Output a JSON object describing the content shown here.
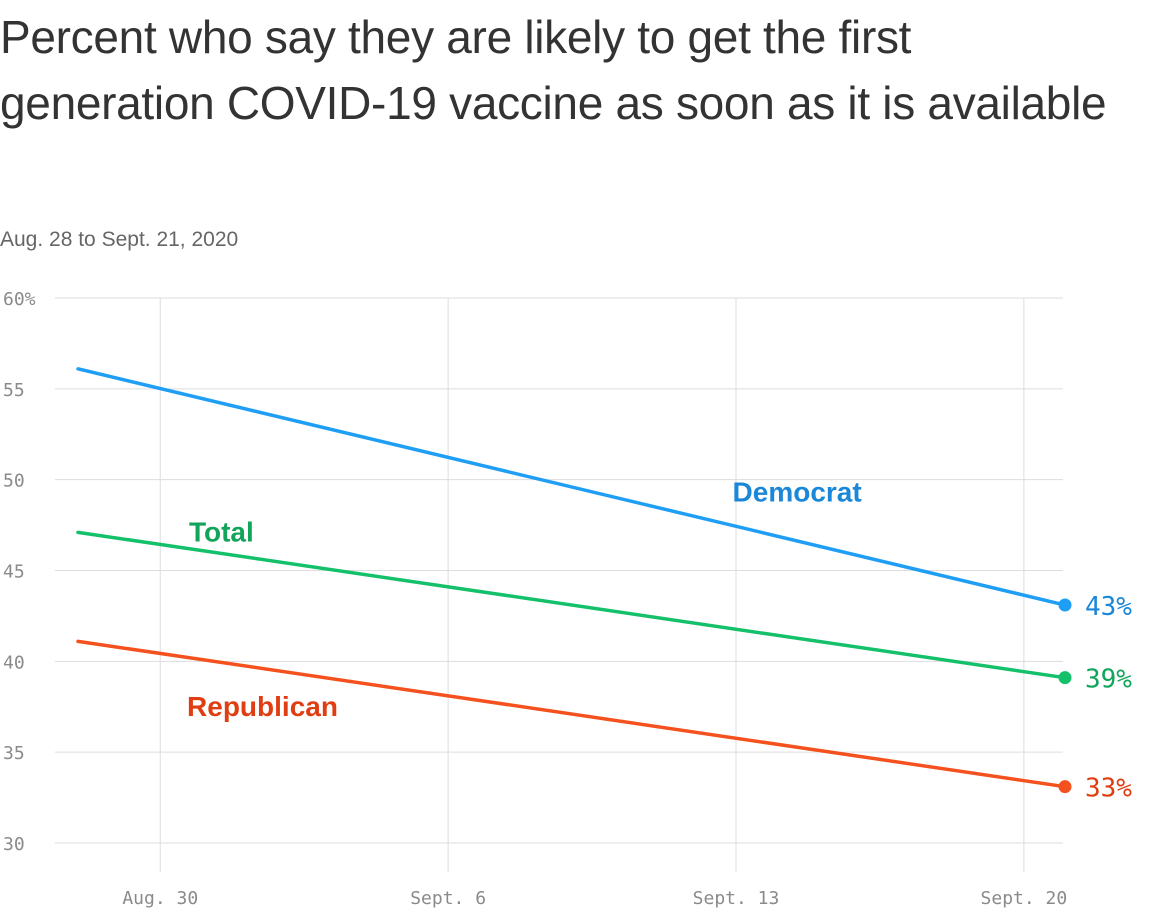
{
  "chart_data": {
    "type": "line",
    "title": "Percent who say they are likely to get the first generation COVID-19 vaccine as soon as it is available",
    "subtitle": "Aug. 28 to Sept. 21, 2020",
    "x": [
      "2020-08-28",
      "2020-09-21"
    ],
    "x_range": [
      "2020-08-28",
      "2020-09-21"
    ],
    "x_ticks": [
      {
        "date": "2020-08-30",
        "label": "Aug. 30"
      },
      {
        "date": "2020-09-06",
        "label": "Sept. 6"
      },
      {
        "date": "2020-09-13",
        "label": "Sept. 13"
      },
      {
        "date": "2020-09-20",
        "label": "Sept. 20"
      }
    ],
    "ylim": [
      30,
      60
    ],
    "y_ticks": [
      {
        "value": 60,
        "label": "60%"
      },
      {
        "value": 55,
        "label": "55"
      },
      {
        "value": 50,
        "label": "50"
      },
      {
        "value": 45,
        "label": "45"
      },
      {
        "value": 40,
        "label": "40"
      },
      {
        "value": 35,
        "label": "35"
      },
      {
        "value": 30,
        "label": "30"
      }
    ],
    "grid": true,
    "series": [
      {
        "name": "Democrat",
        "values": [
          56.1,
          43.1
        ],
        "color": "#1f9ef5",
        "label_color": "#1a87d8",
        "end_label": "43%",
        "label_anchor": {
          "date": "2020-09-14",
          "value": 48.8
        }
      },
      {
        "name": "Total",
        "values": [
          47.1,
          39.1
        ],
        "color": "#14c06a",
        "label_color": "#12a45a",
        "end_label": "39%",
        "label_anchor": {
          "date": "2020-08-31",
          "value": 46.6
        }
      },
      {
        "name": "Republican",
        "values": [
          41.1,
          33.1
        ],
        "color": "#f4511e",
        "label_color": "#e03e12",
        "end_label": "33%",
        "label_anchor": {
          "date": "2020-09-01",
          "value": 37.0
        }
      }
    ]
  }
}
